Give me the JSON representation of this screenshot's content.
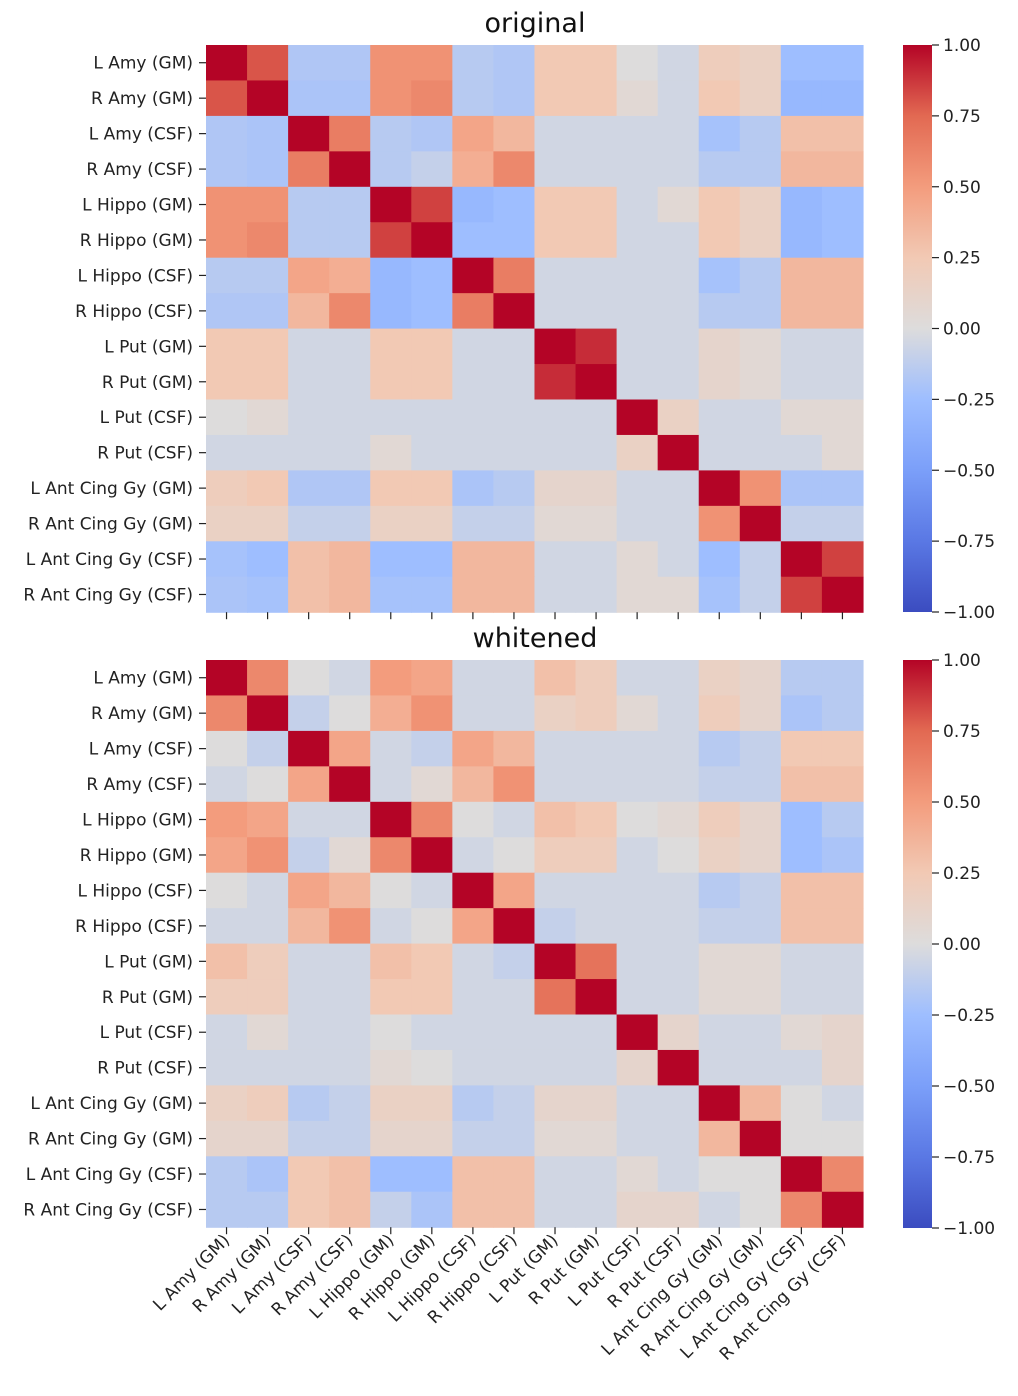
{
  "chart_data": [
    {
      "type": "heatmap",
      "title": "original",
      "labels": [
        "L Amy (GM)",
        "R Amy (GM)",
        "L Amy (CSF)",
        "R Amy (CSF)",
        "L Hippo (GM)",
        "R Hippo (GM)",
        "L Hippo (CSF)",
        "R Hippo (CSF)",
        "L Put (GM)",
        "R Put (GM)",
        "L Put (CSF)",
        "R Put (CSF)",
        "L Ant Cing Gy (GM)",
        "R Ant Cing Gy (GM)",
        "L Ant Cing Gy (CSF)",
        "R Ant Cing Gy (CSF)"
      ],
      "show_x_labels": false,
      "values": [
        [
          1.0,
          0.8,
          -0.18,
          -0.18,
          0.55,
          0.55,
          -0.15,
          -0.18,
          0.25,
          0.25,
          0.0,
          -0.05,
          0.2,
          0.15,
          -0.25,
          -0.25
        ],
        [
          0.8,
          1.0,
          -0.2,
          -0.2,
          0.55,
          0.6,
          -0.15,
          -0.18,
          0.25,
          0.25,
          0.05,
          -0.05,
          0.25,
          0.15,
          -0.3,
          -0.3
        ],
        [
          -0.18,
          -0.2,
          1.0,
          0.65,
          -0.15,
          -0.18,
          0.45,
          0.35,
          -0.05,
          -0.05,
          -0.05,
          -0.05,
          -0.22,
          -0.15,
          0.3,
          0.3
        ],
        [
          -0.18,
          -0.2,
          0.65,
          1.0,
          -0.15,
          -0.1,
          0.4,
          0.6,
          -0.05,
          -0.05,
          -0.05,
          -0.05,
          -0.15,
          -0.15,
          0.35,
          0.35
        ],
        [
          0.55,
          0.55,
          -0.15,
          -0.15,
          1.0,
          0.85,
          -0.3,
          -0.25,
          0.25,
          0.25,
          -0.05,
          0.05,
          0.25,
          0.15,
          -0.3,
          -0.25
        ],
        [
          0.55,
          0.6,
          -0.15,
          -0.15,
          0.85,
          1.0,
          -0.25,
          -0.25,
          0.25,
          0.25,
          -0.05,
          -0.05,
          0.25,
          0.15,
          -0.3,
          -0.25
        ],
        [
          -0.15,
          -0.15,
          0.45,
          0.4,
          -0.3,
          -0.25,
          1.0,
          0.65,
          -0.05,
          -0.05,
          -0.05,
          -0.05,
          -0.22,
          -0.15,
          0.35,
          0.35
        ],
        [
          -0.18,
          -0.18,
          0.35,
          0.6,
          -0.3,
          -0.25,
          0.65,
          1.0,
          -0.05,
          -0.05,
          -0.05,
          -0.05,
          -0.15,
          -0.15,
          0.35,
          0.35
        ],
        [
          0.25,
          0.25,
          -0.05,
          -0.05,
          0.25,
          0.25,
          -0.05,
          -0.05,
          1.0,
          0.9,
          -0.05,
          -0.05,
          0.1,
          0.05,
          -0.05,
          -0.05
        ],
        [
          0.25,
          0.25,
          -0.05,
          -0.05,
          0.25,
          0.25,
          -0.05,
          -0.05,
          0.9,
          1.0,
          -0.05,
          -0.05,
          0.1,
          0.05,
          -0.05,
          -0.05
        ],
        [
          0.0,
          0.05,
          -0.05,
          -0.05,
          -0.05,
          -0.05,
          -0.05,
          -0.05,
          -0.05,
          -0.05,
          1.0,
          0.15,
          -0.05,
          -0.05,
          0.05,
          0.05
        ],
        [
          -0.05,
          -0.05,
          -0.05,
          -0.05,
          0.05,
          -0.05,
          -0.05,
          -0.05,
          -0.05,
          -0.05,
          0.15,
          1.0,
          -0.05,
          -0.05,
          -0.05,
          0.05
        ],
        [
          0.2,
          0.25,
          -0.18,
          -0.18,
          0.25,
          0.25,
          -0.2,
          -0.15,
          0.1,
          0.1,
          -0.05,
          -0.05,
          1.0,
          0.55,
          -0.2,
          -0.2
        ],
        [
          0.15,
          0.15,
          -0.1,
          -0.1,
          0.15,
          0.15,
          -0.1,
          -0.1,
          0.05,
          0.05,
          -0.05,
          -0.05,
          0.55,
          1.0,
          -0.1,
          -0.1
        ],
        [
          -0.22,
          -0.25,
          0.3,
          0.35,
          -0.25,
          -0.25,
          0.35,
          0.35,
          -0.05,
          -0.05,
          0.05,
          -0.05,
          -0.25,
          -0.1,
          1.0,
          0.85
        ],
        [
          -0.2,
          -0.22,
          0.3,
          0.35,
          -0.22,
          -0.22,
          0.35,
          0.35,
          -0.05,
          -0.05,
          0.05,
          0.05,
          -0.22,
          -0.1,
          0.85,
          1.0
        ]
      ],
      "colorbar": {
        "range": [
          -1.0,
          1.0
        ],
        "ticks": [
          "1.00",
          "0.75",
          "0.50",
          "0.25",
          "0.00",
          "−0.25",
          "−0.50",
          "−0.75",
          "−1.00"
        ]
      },
      "colormap": "coolwarm"
    },
    {
      "type": "heatmap",
      "title": "whitened",
      "labels": [
        "L Amy (GM)",
        "R Amy (GM)",
        "L Amy (CSF)",
        "R Amy (CSF)",
        "L Hippo (GM)",
        "R Hippo (GM)",
        "L Hippo (CSF)",
        "R Hippo (CSF)",
        "L Put (GM)",
        "R Put (GM)",
        "L Put (CSF)",
        "R Put (CSF)",
        "L Ant Cing Gy (GM)",
        "R Ant Cing Gy (GM)",
        "L Ant Cing Gy (CSF)",
        "R Ant Cing Gy (CSF)"
      ],
      "show_x_labels": true,
      "values": [
        [
          1.0,
          0.6,
          0.0,
          -0.05,
          0.5,
          0.45,
          -0.05,
          -0.05,
          0.3,
          0.2,
          -0.05,
          -0.05,
          0.15,
          0.1,
          -0.15,
          -0.15
        ],
        [
          0.6,
          1.0,
          -0.1,
          0.0,
          0.4,
          0.55,
          -0.05,
          -0.05,
          0.15,
          0.2,
          0.05,
          -0.05,
          0.2,
          0.1,
          -0.2,
          -0.15
        ],
        [
          0.0,
          -0.1,
          1.0,
          0.45,
          -0.05,
          -0.1,
          0.45,
          0.35,
          -0.05,
          -0.05,
          -0.05,
          -0.05,
          -0.15,
          -0.1,
          0.25,
          0.25
        ],
        [
          -0.05,
          0.0,
          0.45,
          1.0,
          -0.05,
          0.05,
          0.35,
          0.55,
          -0.05,
          -0.05,
          -0.05,
          -0.05,
          -0.1,
          -0.1,
          0.3,
          0.3
        ],
        [
          0.5,
          0.45,
          -0.05,
          -0.05,
          1.0,
          0.6,
          0.0,
          -0.05,
          0.3,
          0.25,
          0.0,
          0.05,
          0.2,
          0.1,
          -0.25,
          -0.15
        ],
        [
          0.45,
          0.55,
          -0.1,
          0.05,
          0.6,
          1.0,
          -0.05,
          0.0,
          0.2,
          0.2,
          -0.05,
          0.0,
          0.15,
          0.1,
          -0.25,
          -0.2
        ],
        [
          0.0,
          -0.05,
          0.45,
          0.35,
          0.0,
          -0.05,
          1.0,
          0.45,
          -0.05,
          -0.05,
          -0.05,
          -0.05,
          -0.15,
          -0.1,
          0.3,
          0.3
        ],
        [
          -0.05,
          -0.05,
          0.35,
          0.55,
          -0.05,
          0.0,
          0.45,
          1.0,
          -0.1,
          -0.05,
          -0.05,
          -0.05,
          -0.1,
          -0.1,
          0.3,
          0.3
        ],
        [
          0.3,
          0.2,
          -0.05,
          -0.05,
          0.3,
          0.25,
          -0.05,
          -0.1,
          1.0,
          0.7,
          -0.05,
          -0.05,
          0.05,
          0.05,
          -0.05,
          -0.05
        ],
        [
          0.2,
          0.2,
          -0.05,
          -0.05,
          0.25,
          0.25,
          -0.05,
          -0.05,
          0.7,
          1.0,
          -0.05,
          -0.05,
          0.05,
          0.05,
          -0.05,
          -0.05
        ],
        [
          -0.05,
          0.05,
          -0.05,
          -0.05,
          0.0,
          -0.05,
          -0.05,
          -0.05,
          -0.05,
          -0.05,
          1.0,
          0.1,
          -0.05,
          -0.05,
          0.05,
          0.1
        ],
        [
          -0.05,
          -0.05,
          -0.05,
          -0.05,
          0.05,
          0.0,
          -0.05,
          -0.05,
          -0.05,
          -0.05,
          0.1,
          1.0,
          -0.05,
          -0.05,
          -0.05,
          0.1
        ],
        [
          0.15,
          0.2,
          -0.15,
          -0.1,
          0.15,
          0.15,
          -0.15,
          -0.1,
          0.1,
          0.1,
          -0.05,
          -0.05,
          1.0,
          0.35,
          0.0,
          -0.05
        ],
        [
          0.1,
          0.1,
          -0.1,
          -0.1,
          0.1,
          0.1,
          -0.1,
          -0.1,
          0.05,
          0.05,
          -0.05,
          -0.05,
          0.35,
          1.0,
          0.0,
          0.0
        ],
        [
          -0.15,
          -0.2,
          0.25,
          0.3,
          -0.25,
          -0.25,
          0.3,
          0.3,
          -0.05,
          -0.05,
          0.05,
          -0.05,
          0.0,
          0.0,
          1.0,
          0.6
        ],
        [
          -0.15,
          -0.15,
          0.25,
          0.3,
          -0.1,
          -0.2,
          0.3,
          0.3,
          -0.05,
          -0.05,
          0.1,
          0.1,
          -0.05,
          0.0,
          0.6,
          1.0
        ]
      ],
      "colorbar": {
        "range": [
          -1.0,
          1.0
        ],
        "ticks": [
          "1.00",
          "0.75",
          "0.50",
          "0.25",
          "0.00",
          "−0.25",
          "−0.50",
          "−0.75",
          "−1.00"
        ]
      },
      "colormap": "coolwarm"
    }
  ]
}
